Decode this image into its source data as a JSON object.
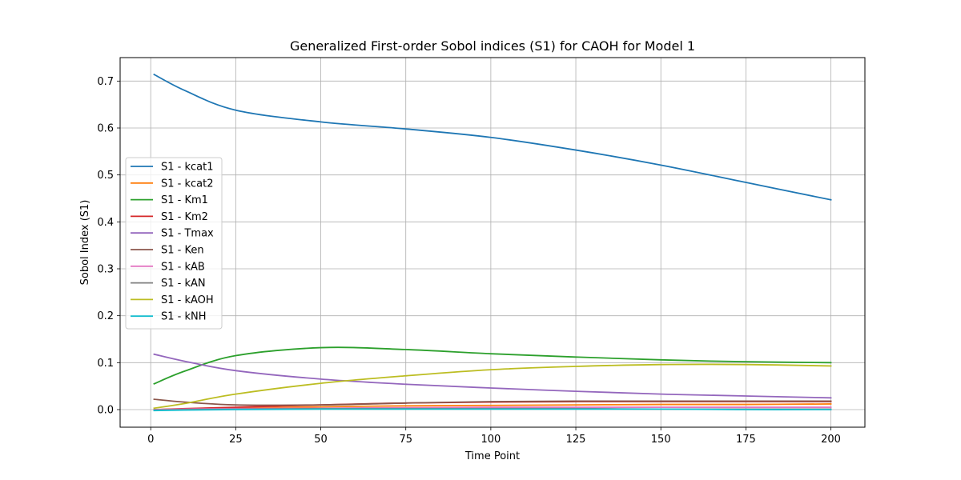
{
  "chart_data": {
    "type": "line",
    "title": "Generalized First-order Sobol indices (S1) for CAOH for Model 1",
    "xlabel": "Time Point",
    "ylabel": "Sobol Index (S1)",
    "xlim": [
      -9,
      210
    ],
    "ylim": [
      -0.0375,
      0.75
    ],
    "xticks": [
      0,
      25,
      50,
      75,
      100,
      125,
      150,
      175,
      200
    ],
    "yticks": [
      0.0,
      0.1,
      0.2,
      0.3,
      0.4,
      0.5,
      0.6,
      0.7
    ],
    "grid": true,
    "legend_position": "center-left",
    "x": [
      1,
      10,
      25,
      50,
      75,
      100,
      125,
      150,
      175,
      200
    ],
    "series": [
      {
        "name": "S1 - kcat1",
        "color": "#1f77b4",
        "values": [
          0.714,
          0.68,
          0.638,
          0.613,
          0.598,
          0.58,
          0.553,
          0.521,
          0.484,
          0.447
        ]
      },
      {
        "name": "S1 - kcat2",
        "color": "#ff7f0e",
        "values": [
          0.0,
          0.001,
          0.003,
          0.006,
          0.008,
          0.009,
          0.01,
          0.011,
          0.011,
          0.012
        ]
      },
      {
        "name": "S1 - Km1",
        "color": "#2ca02c",
        "values": [
          0.055,
          0.082,
          0.115,
          0.132,
          0.128,
          0.119,
          0.112,
          0.106,
          0.102,
          0.1
        ]
      },
      {
        "name": "S1 - Km2",
        "color": "#d62728",
        "values": [
          0.0,
          0.002,
          0.005,
          0.01,
          0.014,
          0.016,
          0.017,
          0.017,
          0.017,
          0.017
        ]
      },
      {
        "name": "S1 - Tmax",
        "color": "#9467bd",
        "values": [
          0.118,
          0.103,
          0.083,
          0.065,
          0.054,
          0.046,
          0.039,
          0.033,
          0.029,
          0.025
        ]
      },
      {
        "name": "S1 - Ken",
        "color": "#8c564b",
        "values": [
          0.022,
          0.016,
          0.01,
          0.01,
          0.014,
          0.017,
          0.018,
          0.018,
          0.018,
          0.018
        ]
      },
      {
        "name": "S1 - kAB",
        "color": "#e377c2",
        "values": [
          0.0,
          0.001,
          0.002,
          0.003,
          0.004,
          0.005,
          0.005,
          0.005,
          0.005,
          0.005
        ]
      },
      {
        "name": "S1 - kAN",
        "color": "#7f7f7f",
        "values": [
          -0.001,
          0.0,
          0.001,
          0.002,
          0.002,
          0.002,
          0.002,
          0.001,
          0.001,
          0.001
        ]
      },
      {
        "name": "S1 - kAOH",
        "color": "#bcbd22",
        "values": [
          0.003,
          0.013,
          0.033,
          0.056,
          0.072,
          0.085,
          0.092,
          0.096,
          0.096,
          0.093
        ]
      },
      {
        "name": "S1 - kNH",
        "color": "#17becf",
        "values": [
          -0.002,
          -0.001,
          0.0,
          0.001,
          0.001,
          0.001,
          0.001,
          0.001,
          0.0,
          0.0
        ]
      }
    ]
  }
}
